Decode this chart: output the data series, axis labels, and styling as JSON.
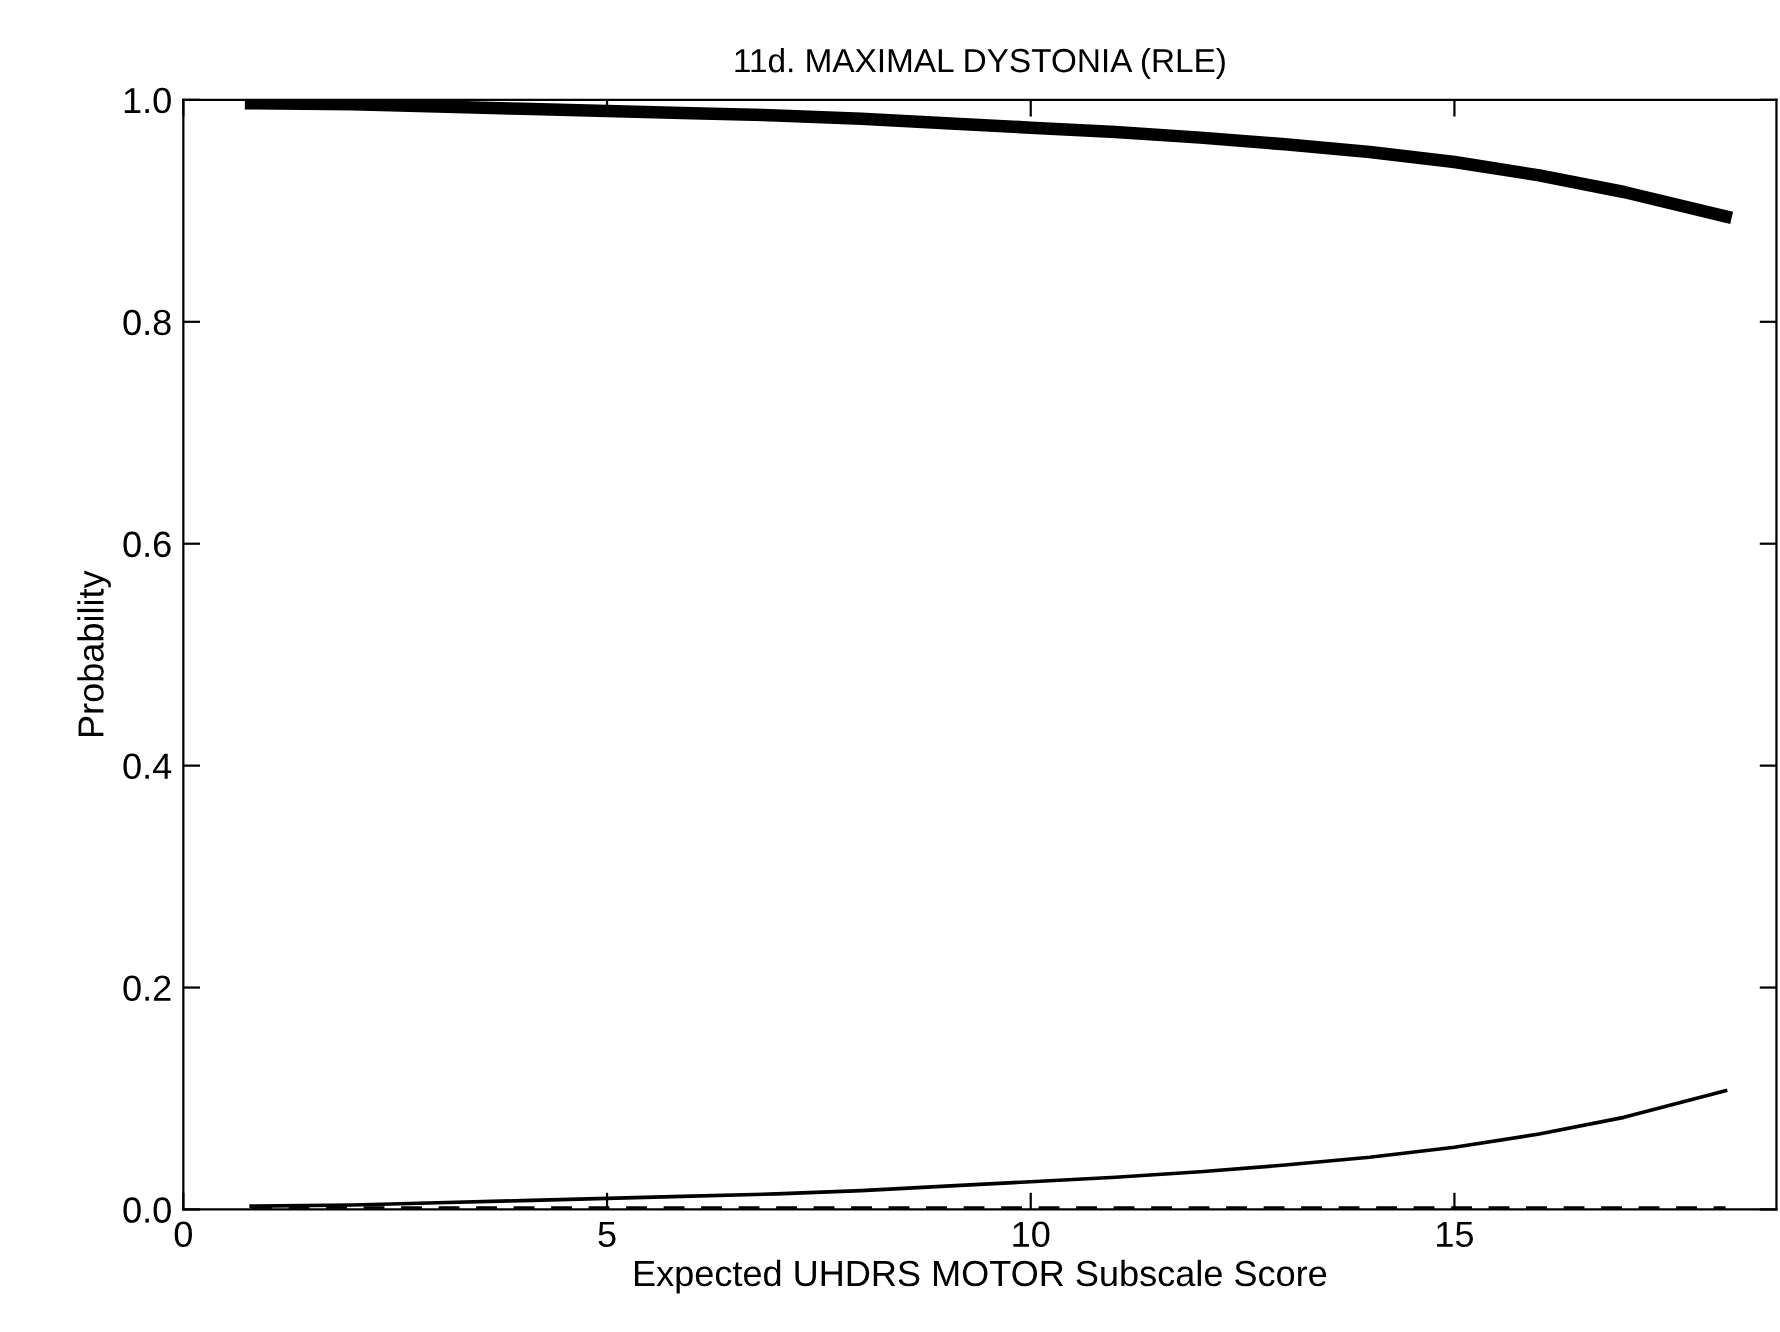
{
  "chart_data": {
    "type": "line",
    "title": "11d. MAXIMAL DYSTONIA (RLE)",
    "xlabel": "Expected UHDRS MOTOR Subscale Score",
    "ylabel": "Probability",
    "x": [
      0.8,
      2,
      3,
      4,
      5,
      6,
      7,
      8,
      9,
      10,
      11,
      12,
      13,
      14,
      15,
      16,
      17,
      18.2
    ],
    "series": [
      {
        "color": "#000000",
        "line_style": "solid",
        "values": [
          0.997,
          0.996,
          0.994,
          0.992,
          0.99,
          0.988,
          0.986,
          0.983,
          0.979,
          0.975,
          0.971,
          0.966,
          0.96,
          0.953,
          0.944,
          0.932,
          0.917,
          0.895
        ]
      },
      {
        "color": "#000000",
        "line_style": "solid",
        "values": [
          0.003,
          0.004,
          0.006,
          0.008,
          0.01,
          0.012,
          0.014,
          0.017,
          0.021,
          0.025,
          0.029,
          0.034,
          0.04,
          0.047,
          0.056,
          0.068,
          0.083,
          0.107
        ]
      },
      {
        "color": "#000000",
        "line_style": "dashed",
        "values": [
          0.001,
          0.001,
          0.001,
          0.001,
          0.001,
          0.001,
          0.001,
          0.001,
          0.001,
          0.001,
          0.001,
          0.001,
          0.001,
          0.001,
          0.001,
          0.001,
          0.001,
          0.001
        ]
      }
    ],
    "xlim": [
      0,
      18.8
    ],
    "ylim": [
      0,
      1
    ],
    "xticks": [
      0,
      5,
      10,
      15
    ],
    "yticks": [
      {
        "value": 0,
        "label": "0.0"
      },
      {
        "value": 0.2,
        "label": "0.2"
      },
      {
        "value": 0.4,
        "label": "0.4"
      },
      {
        "value": 0.6,
        "label": "0.6"
      },
      {
        "value": 0.8,
        "label": "0.8"
      },
      {
        "value": 1,
        "label": "1.0"
      }
    ],
    "grid": false,
    "legend": false,
    "marker": "none"
  }
}
